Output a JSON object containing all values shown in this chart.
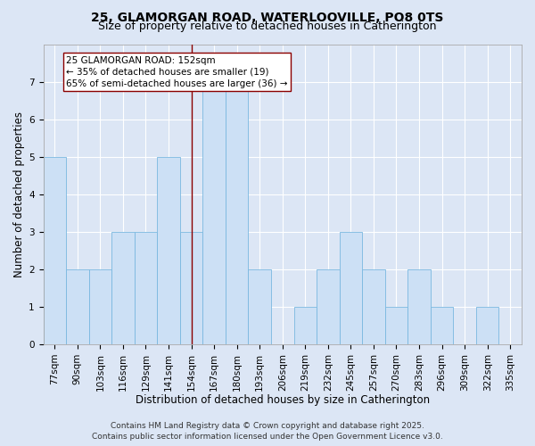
{
  "title_line1": "25, GLAMORGAN ROAD, WATERLOOVILLE, PO8 0TS",
  "title_line2": "Size of property relative to detached houses in Catherington",
  "xlabel": "Distribution of detached houses by size in Catherington",
  "ylabel": "Number of detached properties",
  "categories": [
    "77sqm",
    "90sqm",
    "103sqm",
    "116sqm",
    "129sqm",
    "141sqm",
    "154sqm",
    "167sqm",
    "180sqm",
    "193sqm",
    "206sqm",
    "219sqm",
    "232sqm",
    "245sqm",
    "257sqm",
    "270sqm",
    "283sqm",
    "296sqm",
    "309sqm",
    "322sqm",
    "335sqm"
  ],
  "values": [
    5,
    2,
    2,
    3,
    3,
    5,
    3,
    7,
    7,
    2,
    0,
    1,
    2,
    3,
    2,
    1,
    2,
    1,
    0,
    1,
    0
  ],
  "bar_color": "#cce0f5",
  "bar_edge_color": "#7ab8e0",
  "vline_x_index": 6,
  "vline_color": "#8b0000",
  "annotation_line1": "25 GLAMORGAN ROAD: 152sqm",
  "annotation_line2": "← 35% of detached houses are smaller (19)",
  "annotation_line3": "65% of semi-detached houses are larger (36) →",
  "annotation_box_edgecolor": "#8b0000",
  "annotation_box_facecolor": "#ffffff",
  "ylim_max": 8,
  "yticks": [
    0,
    1,
    2,
    3,
    4,
    5,
    6,
    7
  ],
  "background_color": "#dce6f5",
  "plot_bg_color": "#dce6f5",
  "grid_color": "#ffffff",
  "footer_line1": "Contains HM Land Registry data © Crown copyright and database right 2025.",
  "footer_line2": "Contains public sector information licensed under the Open Government Licence v3.0.",
  "title_fontsize": 10,
  "subtitle_fontsize": 9,
  "axis_label_fontsize": 8.5,
  "tick_fontsize": 7.5,
  "annotation_fontsize": 7.5,
  "footer_fontsize": 6.5
}
